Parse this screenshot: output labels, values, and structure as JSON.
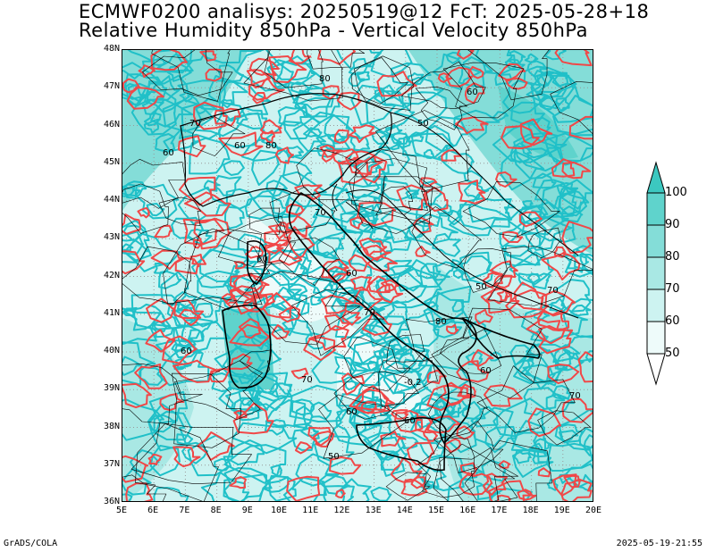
{
  "title": {
    "line1": "ECMWF0200 analisys: 20250519@12 FcT: 2025-05-28+18",
    "line2": "Relative Humidity 850hPa - Vertical Velocity 850hPa"
  },
  "axes": {
    "lat_labels": [
      "48N",
      "47N",
      "46N",
      "45N",
      "44N",
      "43N",
      "42N",
      "41N",
      "40N",
      "39N",
      "38N",
      "37N",
      "36N"
    ],
    "lon_labels": [
      "5E",
      "6E",
      "7E",
      "8E",
      "9E",
      "10E",
      "11E",
      "12E",
      "13E",
      "14E",
      "15E",
      "16E",
      "17E",
      "18E",
      "19E",
      "20E"
    ],
    "lat_range": [
      36,
      48
    ],
    "lon_range": [
      5,
      20
    ],
    "grid": "dotted"
  },
  "contour_labels": [
    "80",
    "60",
    "70",
    "50",
    "60",
    "80",
    "60",
    "70",
    "60",
    "60",
    "70",
    "50",
    "60",
    "70",
    "80",
    "60",
    "70",
    "-0.2",
    "60",
    "60",
    "50",
    "70"
  ],
  "colorbar": {
    "levels": [
      "100",
      "90",
      "80",
      "70",
      "60",
      "50"
    ],
    "colors": [
      "#3cc8c0",
      "#5fd3cc",
      "#84ddd8",
      "#a9e8e4",
      "#cdf3f1",
      "#eefbfa"
    ]
  },
  "series_colors": {
    "humidity": "#20c0c8",
    "vertical_velocity": "#f04848",
    "coast": "#000000"
  },
  "footer": {
    "left": "GrADS/COLA",
    "right": "2025-05-19-21:55"
  }
}
